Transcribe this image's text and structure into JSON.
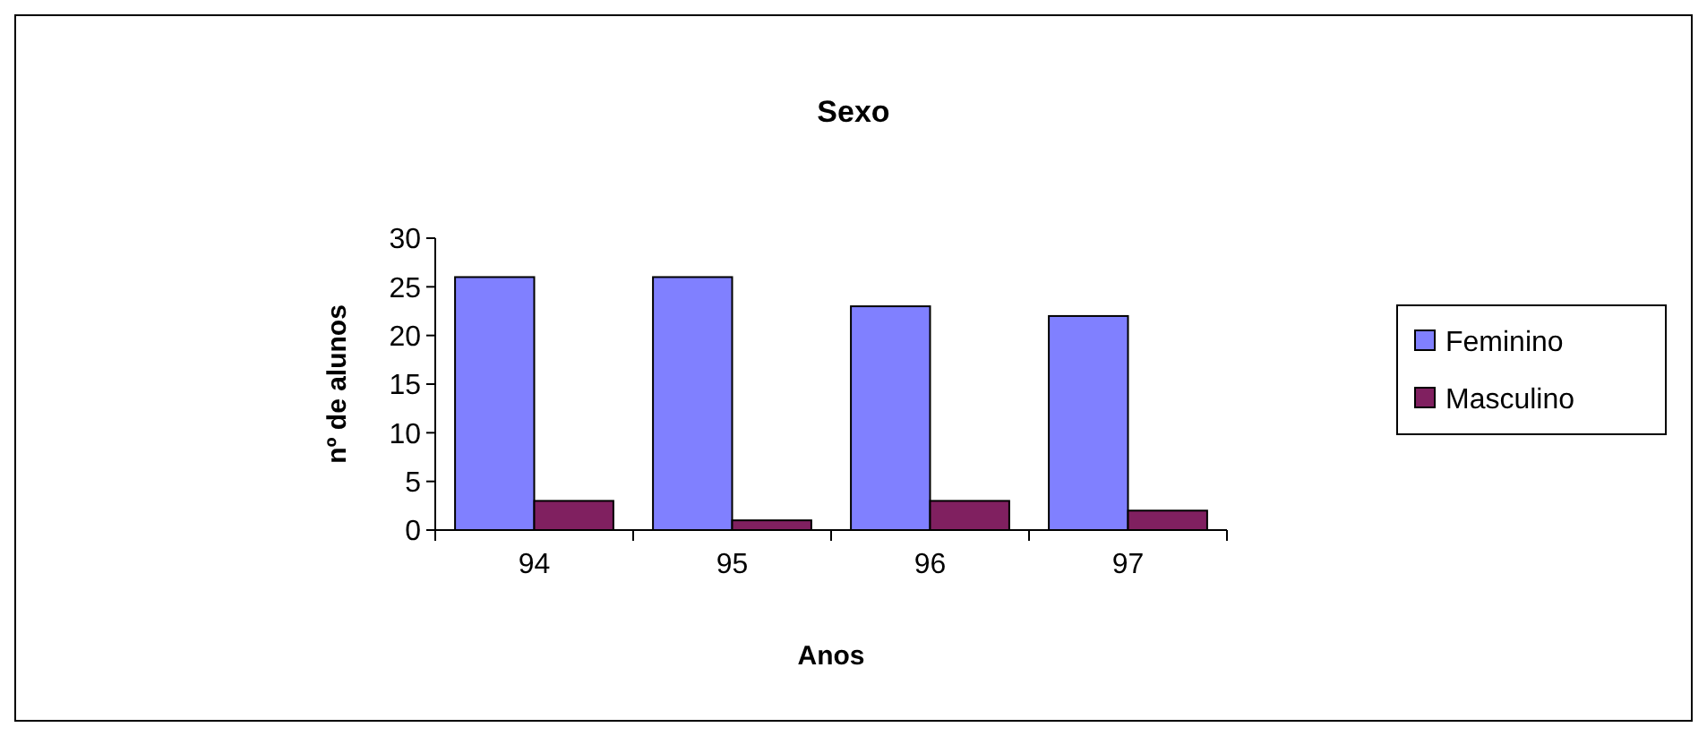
{
  "chart_data": {
    "type": "bar",
    "title": "Sexo",
    "xlabel": "Anos",
    "ylabel": "nº de alunos",
    "categories": [
      "94",
      "95",
      "96",
      "97"
    ],
    "series": [
      {
        "name": "Feminino",
        "color": "#8080ff",
        "values": [
          26,
          26,
          23,
          22
        ]
      },
      {
        "name": "Masculino",
        "color": "#802060",
        "values": [
          3,
          1,
          3,
          2
        ]
      }
    ],
    "ylim": [
      0,
      30
    ],
    "yticks": [
      0,
      5,
      10,
      15,
      20,
      25,
      30
    ],
    "grid": false,
    "legend": "right"
  }
}
